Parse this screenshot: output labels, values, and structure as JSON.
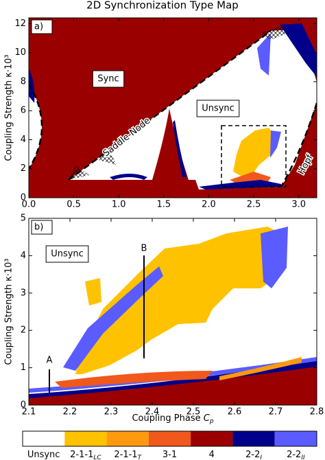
{
  "title": "2D Synchronization Type Map",
  "panels": [
    {
      "label": "a)",
      "xlim": [
        0,
        3.2
      ],
      "ylim": [
        0,
        12.4
      ],
      "xticks": [
        {
          "value": 0,
          "label": "0.0"
        },
        0.5,
        {
          "value": 1,
          "label": "1.0"
        },
        1.5,
        {
          "value": 2,
          "label": "2.0"
        },
        2.5,
        {
          "value": 3,
          "label": "3.0"
        }
      ],
      "yticks": [
        0,
        2,
        4,
        6,
        8,
        10,
        12
      ],
      "y_label": "Coupling Strength κ·10³",
      "annotations": [
        "Sync",
        "Unsync",
        "Saddle-Node",
        "Hopf"
      ]
    },
    {
      "label": "b)",
      "xlim": [
        2.1,
        2.8
      ],
      "ylim": [
        0,
        5
      ],
      "xticks": [
        2.1,
        2.2,
        2.3,
        2.4,
        2.5,
        2.6,
        2.7,
        2.8
      ],
      "yticks": [
        0,
        1,
        2,
        3,
        4,
        5
      ],
      "y_label": "Coupling Strength κ·10³",
      "annotations": [
        "Unsync",
        "A",
        "B"
      ]
    }
  ],
  "x_label": "Coupling Phase",
  "x_label_symbol": "C",
  "x_label_subscript": "p",
  "colorbar": [
    {
      "label": "Unsync",
      "color": "#ffffff"
    },
    {
      "label": "2-1-1",
      "subscript": "LC",
      "color": "#ffc200"
    },
    {
      "label": "2-1-1",
      "subscript": "T",
      "color": "#ff9a10"
    },
    {
      "label": "3-1",
      "color": "#f0581c"
    },
    {
      "label": "4",
      "color": "#9b0000"
    },
    {
      "label": "2-2",
      "subscript": "I",
      "color": "#00008b"
    },
    {
      "label": "2-2",
      "subscript": "II",
      "color": "#5a5cff"
    }
  ]
}
